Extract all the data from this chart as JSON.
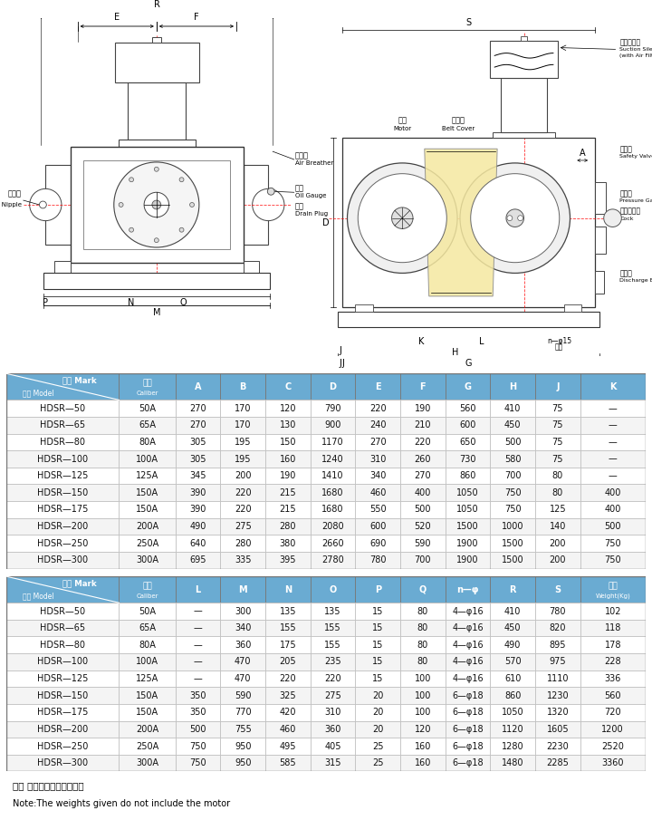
{
  "table1_header_row1": [
    "记号 Mark",
    "口径",
    "A",
    "B",
    "C",
    "D",
    "E",
    "F",
    "G",
    "H",
    "J",
    "K"
  ],
  "table1_header_row2": [
    "型式 Model",
    "Caliber",
    "",
    "",
    "",
    "",
    "",
    "",
    "",
    "",
    "",
    ""
  ],
  "table1_data": [
    [
      "HDSR—50",
      "50A",
      "270",
      "170",
      "120",
      "790",
      "220",
      "190",
      "560",
      "410",
      "75",
      "—"
    ],
    [
      "HDSR—65",
      "65A",
      "270",
      "170",
      "130",
      "900",
      "240",
      "210",
      "600",
      "450",
      "75",
      "—"
    ],
    [
      "HDSR—80",
      "80A",
      "305",
      "195",
      "150",
      "1170",
      "270",
      "220",
      "650",
      "500",
      "75",
      "—"
    ],
    [
      "HDSR—100",
      "100A",
      "305",
      "195",
      "160",
      "1240",
      "310",
      "260",
      "730",
      "580",
      "75",
      "—"
    ],
    [
      "HDSR—125",
      "125A",
      "345",
      "200",
      "190",
      "1410",
      "340",
      "270",
      "860",
      "700",
      "80",
      "—"
    ],
    [
      "HDSR—150",
      "150A",
      "390",
      "220",
      "215",
      "1680",
      "460",
      "400",
      "1050",
      "750",
      "80",
      "400"
    ],
    [
      "HDSR—175",
      "150A",
      "390",
      "220",
      "215",
      "1680",
      "550",
      "500",
      "1050",
      "750",
      "125",
      "400"
    ],
    [
      "HDSR—200",
      "200A",
      "490",
      "275",
      "280",
      "2080",
      "600",
      "520",
      "1500",
      "1000",
      "140",
      "500"
    ],
    [
      "HDSR—250",
      "250A",
      "640",
      "280",
      "380",
      "2660",
      "690",
      "590",
      "1900",
      "1500",
      "200",
      "750"
    ],
    [
      "HDSR—300",
      "300A",
      "695",
      "335",
      "395",
      "2780",
      "780",
      "700",
      "1900",
      "1500",
      "200",
      "750"
    ]
  ],
  "table2_header_row1": [
    "记号 Mark",
    "口径",
    "L",
    "M",
    "N",
    "O",
    "P",
    "Q",
    "n—φ",
    "R",
    "S",
    "重量"
  ],
  "table2_header_row2": [
    "型式 Model",
    "Caliber",
    "",
    "",
    "",
    "",
    "",
    "",
    "",
    "",
    "",
    "Weight(Kg)"
  ],
  "table2_data": [
    [
      "HDSR—50",
      "50A",
      "—",
      "300",
      "135",
      "135",
      "15",
      "80",
      "4—φ16",
      "410",
      "780",
      "102"
    ],
    [
      "HDSR—65",
      "65A",
      "—",
      "340",
      "155",
      "155",
      "15",
      "80",
      "4—φ16",
      "450",
      "820",
      "118"
    ],
    [
      "HDSR—80",
      "80A",
      "—",
      "360",
      "175",
      "155",
      "15",
      "80",
      "4—φ16",
      "490",
      "895",
      "178"
    ],
    [
      "HDSR—100",
      "100A",
      "—",
      "470",
      "205",
      "235",
      "15",
      "80",
      "4—φ16",
      "570",
      "975",
      "228"
    ],
    [
      "HDSR—125",
      "125A",
      "—",
      "470",
      "220",
      "220",
      "15",
      "100",
      "4—φ16",
      "610",
      "1110",
      "336"
    ],
    [
      "HDSR—150",
      "150A",
      "350",
      "590",
      "325",
      "275",
      "20",
      "100",
      "6—φ18",
      "860",
      "1230",
      "560"
    ],
    [
      "HDSR—175",
      "150A",
      "350",
      "770",
      "420",
      "310",
      "20",
      "100",
      "6—φ18",
      "1050",
      "1320",
      "720"
    ],
    [
      "HDSR—200",
      "200A",
      "500",
      "755",
      "460",
      "360",
      "20",
      "120",
      "6—φ18",
      "1120",
      "1605",
      "1200"
    ],
    [
      "HDSR—250",
      "250A",
      "750",
      "950",
      "495",
      "405",
      "25",
      "160",
      "6—φ18",
      "1280",
      "2230",
      "2520"
    ],
    [
      "HDSR—300",
      "300A",
      "750",
      "950",
      "585",
      "315",
      "25",
      "160",
      "6—φ18",
      "1480",
      "2285",
      "3360"
    ]
  ],
  "note_zh": "注： 重量中不包括电机重量",
  "note_en": "Note:The weights given do not include the motor",
  "header_bg": "#6aabd2",
  "alt_row_bg": "#f4f4f4",
  "white_row_bg": "#ffffff",
  "header_text_color": "#ffffff",
  "border_color": "#aaaaaa"
}
